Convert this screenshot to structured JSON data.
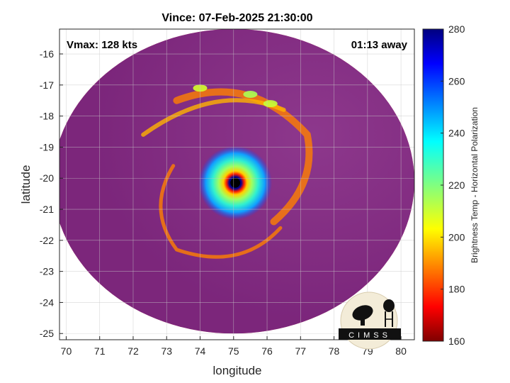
{
  "chart_data": {
    "type": "heatmap",
    "title": "Vince: 07-Feb-2025 21:30:00",
    "xlabel": "longitude",
    "ylabel": "latitude",
    "xlim": [
      69.8,
      80.4
    ],
    "ylim": [
      -25.2,
      -15.2
    ],
    "xticks": [
      70,
      71,
      72,
      73,
      74,
      75,
      76,
      77,
      78,
      79,
      80
    ],
    "yticks": [
      -16,
      -17,
      -18,
      -19,
      -20,
      -21,
      -22,
      -23,
      -24,
      -25
    ],
    "grid": true,
    "annotation_left": "Vmax: 128 kts",
    "annotation_right": "01:13 away",
    "colorbar": {
      "label": "Brightness Temp - Horizontal Polarization",
      "range": [
        160,
        280
      ],
      "ticks": [
        160,
        180,
        200,
        220,
        240,
        260,
        280
      ],
      "colormap": "jet"
    },
    "swath": {
      "center": [
        75.0,
        -20.1
      ],
      "radius_lon": 5.4,
      "radius_lat": 4.9
    },
    "storm_center": {
      "lon": 75.05,
      "lat": -20.15,
      "eye_brightness_temp_min": 170
    },
    "features": [
      {
        "name": "eyewall",
        "lon": 75.05,
        "lat": -20.15,
        "brightness_temp": 205
      },
      {
        "name": "inner-core",
        "lon": 75.05,
        "lat": -20.15,
        "brightness_temp": 232
      },
      {
        "name": "outer-band",
        "lon": 75.5,
        "lat": -17.3,
        "brightness_temp": 225
      },
      {
        "name": "outer-band",
        "lon": 74.0,
        "lat": -17.1,
        "brightness_temp": 230
      },
      {
        "name": "outer-band",
        "lon": 76.1,
        "lat": -17.6,
        "brightness_temp": 228
      }
    ],
    "background_brightness_temp": 262
  },
  "logo": {
    "text": "CIMSS"
  }
}
